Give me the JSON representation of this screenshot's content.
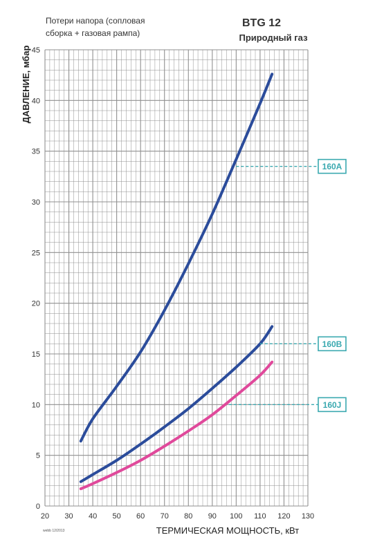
{
  "header": {
    "note_line1": "Потери напора (сопловая",
    "note_line2": "сборка + газовая рампа)",
    "model": "BTG 12",
    "fuel": "Природный газ"
  },
  "footer_code": "webb 12/2013",
  "chart_data": {
    "type": "line",
    "xlabel": "ТЕРМИЧЕСКАЯ МОЩНОСТЬ, кВт",
    "ylabel": "ДАВЛЕНИЕ, мбар",
    "xlim": [
      20,
      130
    ],
    "ylim": [
      0,
      45
    ],
    "x_ticks": [
      "20",
      "30",
      "40",
      "50",
      "60",
      "70",
      "80",
      "90",
      "100",
      "110",
      "120",
      "130"
    ],
    "y_ticks": [
      "0",
      "5",
      "10",
      "15",
      "20",
      "25",
      "30",
      "35",
      "40",
      "45"
    ],
    "grid": true,
    "series": [
      {
        "name": "160A",
        "color": "#2b4c9b",
        "x": [
          35,
          40,
          50,
          60,
          70,
          80,
          90,
          100,
          110,
          115
        ],
        "y": [
          6.4,
          8.6,
          11.8,
          15.2,
          19.3,
          23.9,
          28.8,
          34.2,
          39.7,
          42.6
        ],
        "label_at": [
          100,
          33.5
        ]
      },
      {
        "name": "160B",
        "color": "#2b4c9b",
        "x": [
          35,
          40,
          50,
          60,
          70,
          80,
          90,
          100,
          110,
          115
        ],
        "y": [
          2.4,
          3.1,
          4.5,
          6.1,
          7.8,
          9.6,
          11.6,
          13.7,
          16.0,
          17.7
        ],
        "label_at": [
          110,
          16.0
        ]
      },
      {
        "name": "160J",
        "color": "#e0499b",
        "x": [
          35,
          40,
          50,
          60,
          70,
          80,
          90,
          100,
          110,
          115
        ],
        "y": [
          1.7,
          2.2,
          3.3,
          4.5,
          5.9,
          7.4,
          9.0,
          10.9,
          12.9,
          14.2
        ],
        "label_at": [
          97,
          10.0
        ]
      }
    ]
  },
  "colors": {
    "grid": "#8f8f8f",
    "tag": "#3aa9b0"
  }
}
